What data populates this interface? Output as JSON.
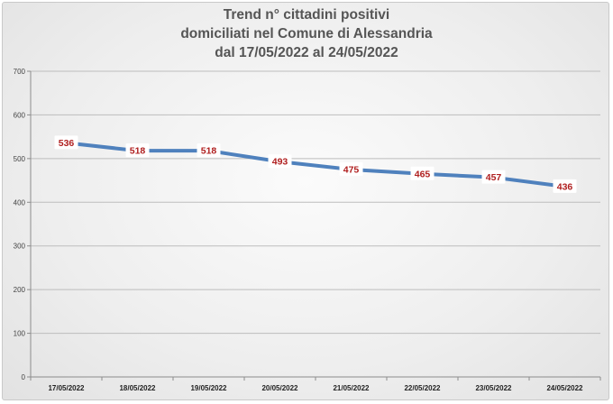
{
  "chart_data": {
    "type": "line",
    "title_lines": [
      "Trend n° cittadini positivi",
      "domiciliati nel Comune di Alessandria",
      "dal 17/05/2022 al 24/05/2022"
    ],
    "categories": [
      "17/05/2022",
      "18/05/2022",
      "19/05/2022",
      "20/05/2022",
      "21/05/2022",
      "22/05/2022",
      "23/05/2022",
      "24/05/2022"
    ],
    "values": [
      536,
      518,
      518,
      493,
      475,
      465,
      457,
      436
    ],
    "yticks": [
      0,
      100,
      200,
      300,
      400,
      500,
      600,
      700
    ],
    "ylim": [
      0,
      700
    ],
    "grid": true,
    "line_color": "#4f81bd",
    "label_color": "#b02020"
  }
}
